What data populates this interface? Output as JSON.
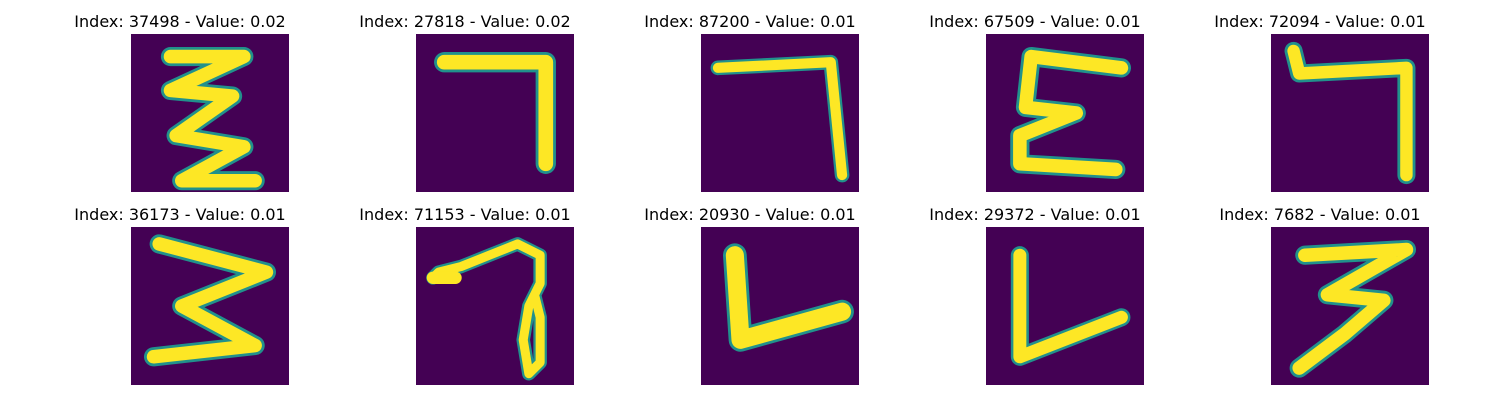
{
  "figure": {
    "background": "#ffffff",
    "colormap": "viridis",
    "panels": [
      {
        "title": "Index: 37498 - Value: 0.02",
        "depicts": "digit resembling a zigzag Z/3 stroke"
      },
      {
        "title": "Index: 27818 - Value: 0.02",
        "depicts": "digit resembling 7"
      },
      {
        "title": "Index: 87200 - Value: 0.01",
        "depicts": "digit resembling 7"
      },
      {
        "title": "Index: 67509 - Value: 0.01",
        "depicts": "digit resembling E/3"
      },
      {
        "title": "Index: 72094 - Value: 0.01",
        "depicts": "digit resembling 7"
      },
      {
        "title": "Index: 36173 - Value: 0.01",
        "depicts": "digit resembling 3 (zigzag)"
      },
      {
        "title": "Index: 71153 - Value: 0.01",
        "depicts": "digit resembling 7 with loop"
      },
      {
        "title": "Index: 20930 - Value: 0.01",
        "depicts": "digit resembling L"
      },
      {
        "title": "Index: 29372 - Value: 0.01",
        "depicts": "digit resembling L"
      },
      {
        "title": "Index: 7682 - Value: 0.01",
        "depicts": "digit resembling 3"
      }
    ],
    "colors": {
      "background_pixel": "#440154",
      "edge": "#21918c",
      "stroke": "#fde725"
    }
  }
}
